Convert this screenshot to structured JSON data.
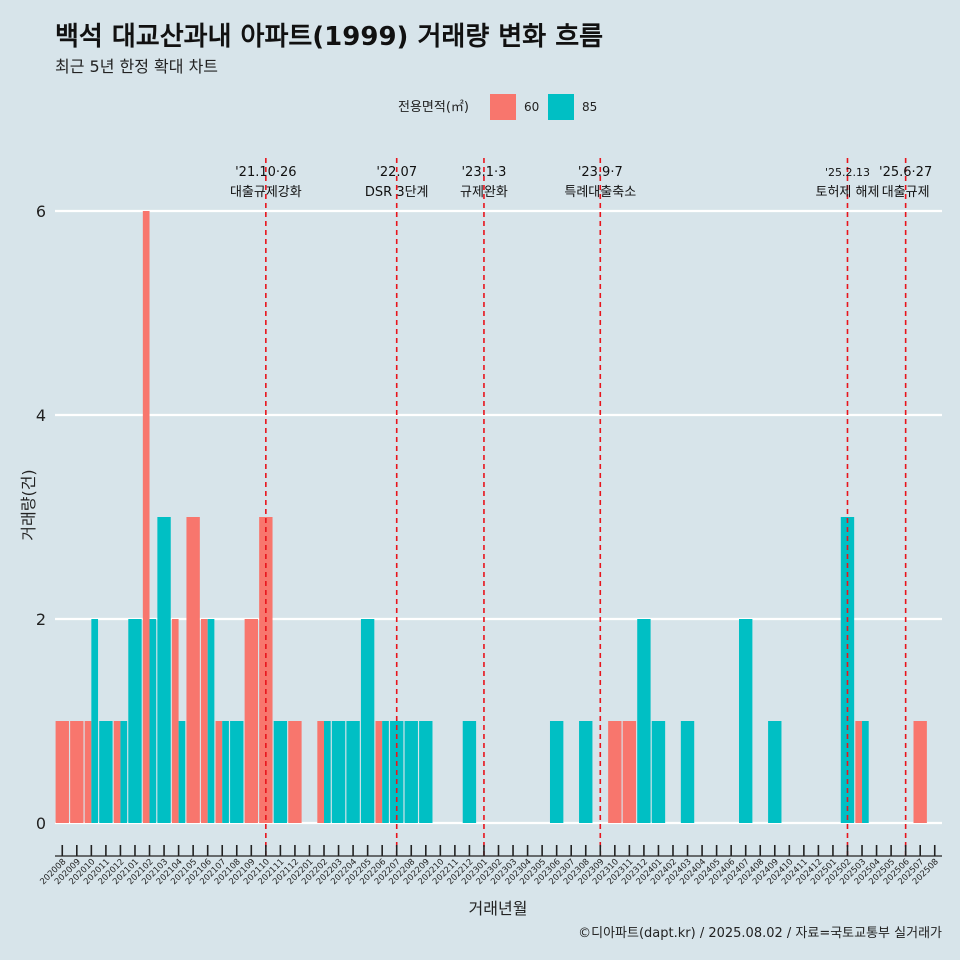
{
  "header": {
    "title": "백석 대교산과내 아파트(1999) 거래량 변화 흐름",
    "subtitle": "최근 5년 한정 확대 차트"
  },
  "caption": "©디아파트(dapt.kr) / 2025.08.02 / 자료=국토교통부 실거래가",
  "colors": {
    "s60": "#f8766d",
    "s85": "#00bfc4",
    "event_line": "#e8141c",
    "background": "#d7e4ea",
    "grid": "#ffffff"
  },
  "chart_data": {
    "type": "bar",
    "xlabel": "거래년월",
    "ylabel": "거래량(건)",
    "ylim": [
      0,
      6
    ],
    "yticks": [
      0,
      2,
      4,
      6
    ],
    "grid": true,
    "legend": {
      "title": "전용면적(㎡)",
      "position": "top"
    },
    "categories": [
      "202008",
      "202009",
      "202010",
      "202011",
      "202012",
      "202101",
      "202102",
      "202103",
      "202104",
      "202105",
      "202106",
      "202107",
      "202108",
      "202109",
      "202110",
      "202111",
      "202112",
      "202201",
      "202202",
      "202203",
      "202204",
      "202205",
      "202206",
      "202207",
      "202208",
      "202209",
      "202210",
      "202211",
      "202212",
      "202301",
      "202302",
      "202303",
      "202304",
      "202305",
      "202306",
      "202307",
      "202308",
      "202309",
      "202310",
      "202311",
      "202312",
      "202401",
      "202402",
      "202403",
      "202404",
      "202405",
      "202406",
      "202407",
      "202408",
      "202409",
      "202410",
      "202411",
      "202412",
      "202501",
      "202502",
      "202503",
      "202504",
      "202505",
      "202506",
      "202507",
      "202508"
    ],
    "series": [
      {
        "name": "60",
        "values": [
          1,
          1,
          1,
          0,
          1,
          0,
          6,
          0,
          2,
          3,
          2,
          1,
          0,
          2,
          3,
          0,
          1,
          0,
          1,
          0,
          0,
          0,
          1,
          0,
          0,
          0,
          0,
          0,
          0,
          0,
          0,
          0,
          0,
          0,
          0,
          0,
          0,
          0,
          1,
          1,
          0,
          0,
          0,
          0,
          0,
          0,
          0,
          0,
          0,
          0,
          0,
          0,
          0,
          0,
          0,
          1,
          0,
          0,
          0,
          1,
          0
        ]
      },
      {
        "name": "85",
        "values": [
          0,
          0,
          2,
          1,
          1,
          2,
          2,
          3,
          1,
          0,
          2,
          1,
          1,
          0,
          0,
          1,
          0,
          0,
          1,
          1,
          1,
          2,
          1,
          1,
          1,
          1,
          0,
          0,
          1,
          0,
          0,
          0,
          0,
          0,
          1,
          0,
          1,
          0,
          0,
          0,
          2,
          1,
          0,
          1,
          0,
          0,
          0,
          2,
          0,
          1,
          0,
          0,
          0,
          0,
          3,
          1,
          0,
          0,
          0,
          0,
          0
        ]
      }
    ],
    "annotations": [
      {
        "category": "202110",
        "date": "'21.10·26",
        "label": "대출규제강화"
      },
      {
        "category": "202207",
        "date": "'22.07",
        "label": "DSR 3단계"
      },
      {
        "category": "202301",
        "date": "'23.1·3",
        "label": "규제완화"
      },
      {
        "category": "202309",
        "date": "'23.9·7",
        "label": "특례대출축소"
      },
      {
        "category": "202502",
        "date": "'25.2.13",
        "label": "토허제 해제"
      },
      {
        "category": "202506",
        "date": "'25.6·27",
        "label": "대출규제"
      }
    ]
  }
}
